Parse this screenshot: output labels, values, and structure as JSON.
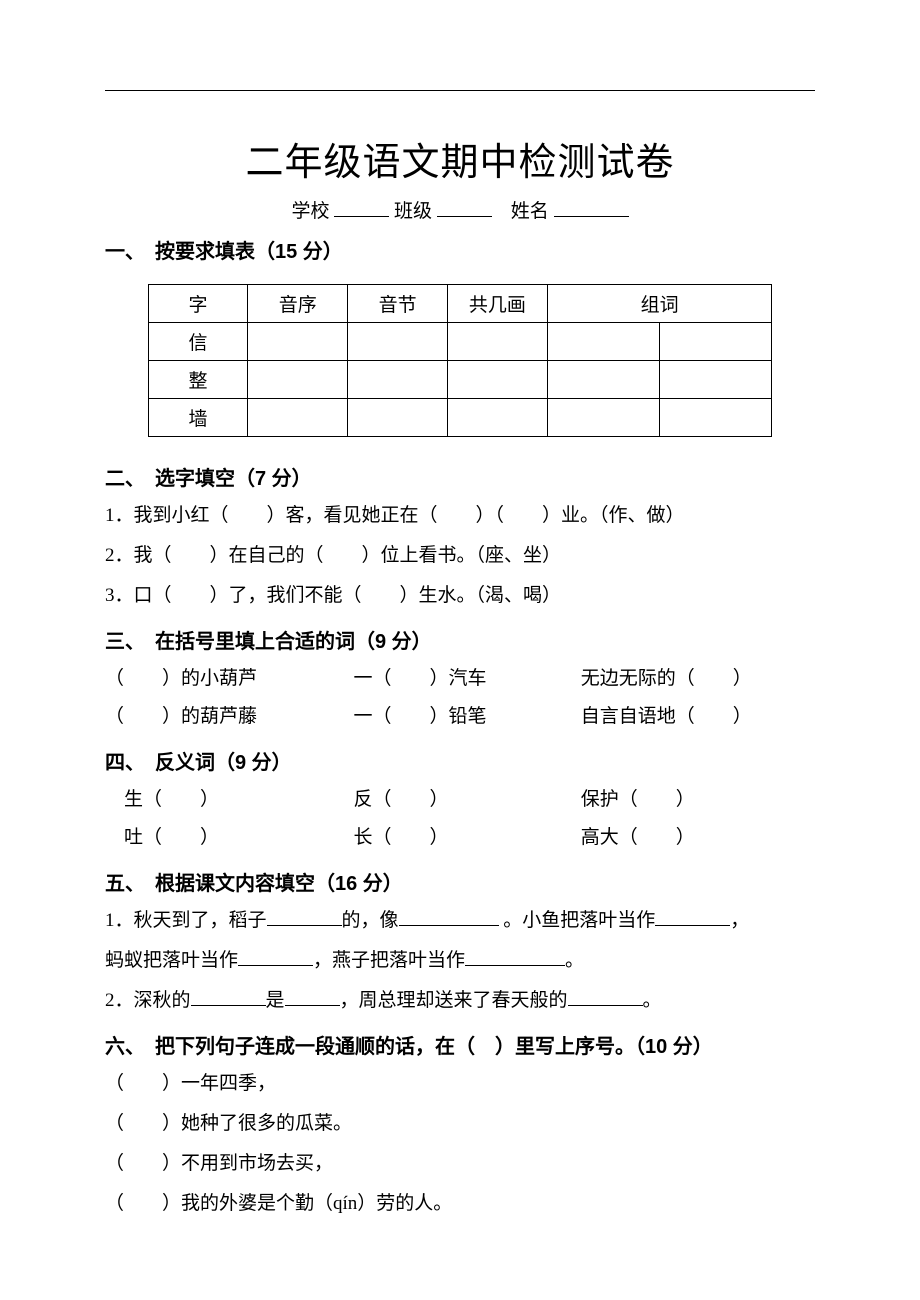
{
  "title": "二年级语文期中检测试卷",
  "subtitle": {
    "school": "学校",
    "class": "班级",
    "name": "姓名"
  },
  "sections": {
    "s1": {
      "heading_num": "一、",
      "heading_text": "按要求填表（15 分）",
      "table": {
        "headers": [
          "字",
          "音序",
          "音节",
          "共几画",
          "组词"
        ],
        "rows": [
          [
            "信",
            "",
            "",
            "",
            "",
            ""
          ],
          [
            "整",
            "",
            "",
            "",
            "",
            ""
          ],
          [
            "墙",
            "",
            "",
            "",
            "",
            ""
          ]
        ],
        "col_widths": [
          "16%",
          "16%",
          "16%",
          "16%",
          "18%",
          "18%"
        ]
      }
    },
    "s2": {
      "heading_num": "二、",
      "heading_text": "选字填空（7 分）",
      "items": [
        "1．我到小红（　　）客，看见她正在（　　）（　　）业。（作、做）",
        "2．我（　　）在自己的（　　）位上看书。（座、坐）",
        "3．口（　　）了，我们不能（　　）生水。（渴、喝）"
      ]
    },
    "s3": {
      "heading_num": "三、",
      "heading_text": "在括号里填上合适的词（9 分）",
      "rows": [
        [
          "（　　）的小葫芦",
          "一（　　）汽车",
          "无边无际的（　　）"
        ],
        [
          "（　　）的葫芦藤",
          "一（　　）铅笔",
          "自言自语地（　　）"
        ]
      ]
    },
    "s4": {
      "heading_num": "四、",
      "heading_text": "反义词（9 分）",
      "rows": [
        [
          "　生（　　）",
          "反（　　）",
          "保护（　　）"
        ],
        [
          "　吐（　　）",
          "长（　　）",
          "高大（　　）"
        ]
      ]
    },
    "s5": {
      "heading_num": "五、",
      "heading_text": "根据课文内容填空（16 分）",
      "lines": [
        {
          "pre": "1．秋天到了，稻子",
          "b1": true,
          "mid1": "的，像",
          "b2": "long",
          "mid2": " 。小鱼把落叶当作",
          "b3": true,
          "tail": "，"
        },
        {
          "pre": "蚂蚁把落叶当作",
          "b1": true,
          "mid1": "，燕子把落叶当作",
          "b2": "long",
          "tail": "。"
        },
        {
          "pre": "2．深秋的",
          "b1": true,
          "mid1": "是",
          "b2": "short",
          "mid2": "，周总理却送来了春天般的",
          "b3": true,
          "tail": "。"
        }
      ]
    },
    "s6": {
      "heading_num": "六、",
      "heading_text": "把下列句子连成一段通顺的话，在（　）里写上序号。（10 分）",
      "items": [
        "（　　）一年四季，",
        "（　　）她种了很多的瓜菜。",
        "（　　）不用到市场去买，",
        "（　　）我的外婆是个勤（qín）劳的人。"
      ]
    }
  },
  "styling": {
    "page_bg": "#ffffff",
    "text_color": "#000000",
    "title_fontsize": 38,
    "heading_fontsize": 20,
    "body_fontsize": 19,
    "line_height": 2.0
  }
}
